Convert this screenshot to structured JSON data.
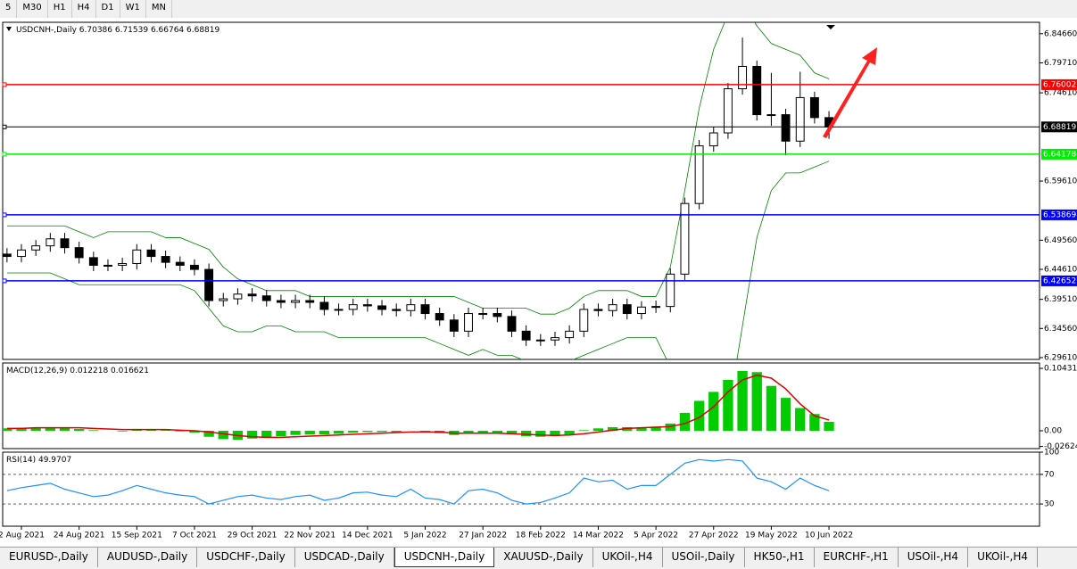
{
  "toolbar": {
    "timeframes": [
      "5",
      "M30",
      "H1",
      "H4",
      "D1",
      "W1",
      "MN"
    ]
  },
  "chart_data": [
    {
      "type": "candlestick",
      "title": "USDCNH-,Daily",
      "quote": "6.70386 6.71539 6.66764 6.68819",
      "xlim": [
        -0.3,
        71.6
      ],
      "ylim": [
        6.293,
        6.866
      ],
      "xticks": [
        {
          "value": 1,
          "label": "2 Aug 2021"
        },
        {
          "value": 5,
          "label": "24 Aug 2021"
        },
        {
          "value": 9,
          "label": "15 Sep 2021"
        },
        {
          "value": 13,
          "label": "7 Oct 2021"
        },
        {
          "value": 17,
          "label": "29 Oct 2021"
        },
        {
          "value": 21,
          "label": "22 Nov 2021"
        },
        {
          "value": 25,
          "label": "14 Dec 2021"
        },
        {
          "value": 29,
          "label": "5 Jan 2022"
        },
        {
          "value": 33,
          "label": "27 Jan 2022"
        },
        {
          "value": 37,
          "label": "18 Feb 2022"
        },
        {
          "value": 41,
          "label": "14 Mar 2022"
        },
        {
          "value": 45,
          "label": "5 Apr 2022"
        },
        {
          "value": 49,
          "label": "27 Apr 2022"
        },
        {
          "value": 53,
          "label": "19 May 2022"
        },
        {
          "value": 57,
          "label": "10 Jun 2022"
        }
      ],
      "yticks": [
        {
          "value": 6.8466,
          "label": "6.84660"
        },
        {
          "value": 6.7971,
          "label": "6.79710"
        },
        {
          "value": 6.7461,
          "label": "6.74610"
        },
        {
          "value": 6.5961,
          "label": "6.59610"
        },
        {
          "value": 6.4956,
          "label": "6.49560"
        },
        {
          "value": 6.4461,
          "label": "6.44610"
        },
        {
          "value": 6.3951,
          "label": "6.39510"
        },
        {
          "value": 6.3456,
          "label": "6.34560"
        },
        {
          "value": 6.2961,
          "label": "6.29610"
        }
      ],
      "open": [
        6.472,
        6.468,
        6.479,
        6.486,
        6.498,
        6.483,
        6.466,
        6.453,
        6.453,
        6.456,
        6.479,
        6.468,
        6.458,
        6.453,
        6.446,
        6.393,
        6.396,
        6.404,
        6.401,
        6.393,
        6.39,
        6.393,
        6.39,
        6.378,
        6.378,
        6.386,
        6.384,
        6.378,
        6.376,
        6.386,
        6.371,
        6.36,
        6.341,
        6.371,
        6.371,
        6.366,
        6.341,
        6.326,
        6.326,
        6.33,
        6.341,
        6.378,
        6.376,
        6.386,
        6.371,
        6.382,
        6.383,
        6.438,
        6.558,
        6.656,
        6.678,
        6.753,
        6.791,
        6.709,
        6.709,
        6.664,
        6.738,
        6.704
      ],
      "high": [
        6.482,
        6.489,
        6.496,
        6.508,
        6.508,
        6.493,
        6.476,
        6.463,
        6.466,
        6.489,
        6.489,
        6.478,
        6.468,
        6.463,
        6.456,
        6.406,
        6.414,
        6.414,
        6.411,
        6.403,
        6.403,
        6.403,
        6.4,
        6.388,
        6.396,
        6.396,
        6.394,
        6.388,
        6.396,
        6.396,
        6.381,
        6.37,
        6.381,
        6.381,
        6.381,
        6.376,
        6.351,
        6.336,
        6.34,
        6.351,
        6.388,
        6.388,
        6.396,
        6.396,
        6.392,
        6.393,
        6.448,
        6.568,
        6.666,
        6.688,
        6.763,
        6.84,
        6.801,
        6.78,
        6.719,
        6.782,
        6.748,
        6.715
      ],
      "low": [
        6.458,
        6.458,
        6.469,
        6.476,
        6.473,
        6.456,
        6.443,
        6.443,
        6.443,
        6.446,
        6.458,
        6.448,
        6.443,
        6.436,
        6.383,
        6.383,
        6.386,
        6.391,
        6.383,
        6.38,
        6.38,
        6.38,
        6.368,
        6.368,
        6.368,
        6.374,
        6.368,
        6.366,
        6.366,
        6.361,
        6.35,
        6.331,
        6.331,
        6.361,
        6.356,
        6.331,
        6.316,
        6.316,
        6.316,
        6.32,
        6.331,
        6.366,
        6.366,
        6.361,
        6.361,
        6.372,
        6.373,
        6.428,
        6.548,
        6.646,
        6.668,
        6.743,
        6.699,
        6.69,
        6.64,
        6.654,
        6.694,
        6.668
      ],
      "close": [
        6.468,
        6.479,
        6.486,
        6.498,
        6.483,
        6.466,
        6.453,
        6.453,
        6.456,
        6.479,
        6.468,
        6.458,
        6.453,
        6.446,
        6.393,
        6.396,
        6.404,
        6.401,
        6.393,
        6.39,
        6.393,
        6.39,
        6.378,
        6.378,
        6.386,
        6.384,
        6.378,
        6.376,
        6.386,
        6.371,
        6.36,
        6.341,
        6.371,
        6.371,
        6.366,
        6.341,
        6.326,
        6.326,
        6.33,
        6.341,
        6.378,
        6.376,
        6.386,
        6.371,
        6.382,
        6.383,
        6.438,
        6.558,
        6.656,
        6.678,
        6.753,
        6.791,
        6.709,
        6.709,
        6.664,
        6.738,
        6.704,
        6.688
      ],
      "bands": {
        "color": "#008000",
        "upper": [
          6.52,
          6.52,
          6.52,
          6.52,
          6.52,
          6.51,
          6.5,
          6.51,
          6.51,
          6.51,
          6.51,
          6.5,
          6.5,
          6.49,
          6.48,
          6.45,
          6.43,
          6.42,
          6.41,
          6.41,
          6.41,
          6.4,
          6.4,
          6.4,
          6.4,
          6.4,
          6.4,
          6.4,
          6.4,
          6.4,
          6.4,
          6.4,
          6.39,
          6.38,
          6.38,
          6.38,
          6.38,
          6.37,
          6.37,
          6.38,
          6.4,
          6.41,
          6.41,
          6.41,
          6.4,
          6.4,
          6.45,
          6.58,
          6.72,
          6.82,
          6.88,
          6.9,
          6.86,
          6.83,
          6.82,
          6.81,
          6.78,
          6.77
        ],
        "lower": [
          6.44,
          6.44,
          6.44,
          6.44,
          6.43,
          6.42,
          6.42,
          6.42,
          6.42,
          6.42,
          6.42,
          6.42,
          6.42,
          6.41,
          6.38,
          6.35,
          6.34,
          6.34,
          6.35,
          6.35,
          6.34,
          6.34,
          6.34,
          6.33,
          6.33,
          6.33,
          6.33,
          6.33,
          6.33,
          6.33,
          6.32,
          6.31,
          6.3,
          6.31,
          6.3,
          6.3,
          6.29,
          6.29,
          6.29,
          6.29,
          6.3,
          6.31,
          6.32,
          6.33,
          6.33,
          6.33,
          6.28,
          6.18,
          6.1,
          6.1,
          6.2,
          6.35,
          6.5,
          6.58,
          6.61,
          6.61,
          6.62,
          6.63
        ]
      },
      "levels": [
        {
          "value": 6.76002,
          "color": "#ff0000"
        },
        {
          "value": 6.64178,
          "color": "#00ee00"
        },
        {
          "value": 6.53869,
          "color": "#0000ff"
        },
        {
          "value": 6.42652,
          "color": "#0000ff"
        },
        {
          "value": 6.68819,
          "color": "#000000"
        }
      ]
    },
    {
      "type": "macd",
      "title": "MACD(12,26,9)",
      "quote": "0.012218 0.016621",
      "xlim": [
        -0.3,
        71.6
      ],
      "ylim": [
        -0.0298,
        0.1133
      ],
      "yticks": [
        0.104313,
        {
          "value": 0,
          "label": "0.00"
        },
        -0.026249
      ],
      "series": [
        {
          "name": "histogram",
          "color": "#00cc00",
          "values": [
            0.004,
            0.005,
            0.005,
            0.006,
            0.005,
            0.003,
            0.001,
            0.0,
            -0.001,
            0.002,
            0.002,
            0.001,
            -0.001,
            -0.003,
            -0.01,
            -0.014,
            -0.015,
            -0.013,
            -0.011,
            -0.009,
            -0.007,
            -0.006,
            -0.006,
            -0.005,
            -0.003,
            -0.002,
            -0.002,
            -0.002,
            0.0,
            -0.002,
            -0.004,
            -0.007,
            -0.005,
            -0.004,
            -0.004,
            -0.006,
            -0.009,
            -0.01,
            -0.009,
            -0.006,
            0.001,
            0.004,
            0.006,
            0.006,
            0.006,
            0.007,
            0.012,
            0.03,
            0.05,
            0.065,
            0.085,
            0.1,
            0.098,
            0.075,
            0.055,
            0.038,
            0.028,
            0.015
          ]
        },
        {
          "name": "signal",
          "color": "#dd0000",
          "values": [
            0.004,
            0.004,
            0.005,
            0.005,
            0.005,
            0.005,
            0.004,
            0.003,
            0.002,
            0.002,
            0.002,
            0.002,
            0.001,
            0.0,
            -0.002,
            -0.005,
            -0.008,
            -0.01,
            -0.011,
            -0.011,
            -0.01,
            -0.009,
            -0.008,
            -0.007,
            -0.006,
            -0.005,
            -0.004,
            -0.003,
            -0.002,
            -0.002,
            -0.002,
            -0.004,
            -0.004,
            -0.004,
            -0.004,
            -0.005,
            -0.006,
            -0.007,
            -0.008,
            -0.007,
            -0.005,
            -0.002,
            0.001,
            0.004,
            0.005,
            0.006,
            0.007,
            0.012,
            0.022,
            0.04,
            0.065,
            0.085,
            0.093,
            0.088,
            0.07,
            0.045,
            0.025,
            0.018
          ]
        }
      ]
    },
    {
      "type": "rsi",
      "title": "RSI(14)",
      "quote": "49.9707",
      "xlim": [
        -0.3,
        71.6
      ],
      "ylim": [
        0,
        100
      ],
      "yticks": [
        100,
        70,
        30
      ],
      "grid": true,
      "series": [
        {
          "name": "RSI",
          "color": "#1e90ff",
          "values": [
            48,
            52,
            55,
            58,
            50,
            45,
            40,
            42,
            48,
            55,
            50,
            45,
            42,
            40,
            30,
            35,
            40,
            42,
            38,
            36,
            40,
            42,
            35,
            38,
            45,
            46,
            42,
            40,
            50,
            38,
            36,
            30,
            48,
            50,
            45,
            35,
            30,
            32,
            38,
            45,
            65,
            60,
            62,
            50,
            55,
            55,
            70,
            85,
            90,
            88,
            90,
            88,
            65,
            60,
            50,
            65,
            55,
            48
          ]
        }
      ]
    }
  ],
  "tabs": {
    "items": [
      "EURUSD-,Daily",
      "AUDUSD-,Daily",
      "USDCHF-,Daily",
      "USDCAD-,Daily",
      "USDCNH-,Daily",
      "XAUUSD-,Daily",
      "UKOil-,H4",
      "USOil-,Daily",
      "HK50-,H1",
      "EURCHF-,H1",
      "USOil-,H4",
      "UKOil-,H4"
    ],
    "active": "USDCNH-,Daily"
  }
}
